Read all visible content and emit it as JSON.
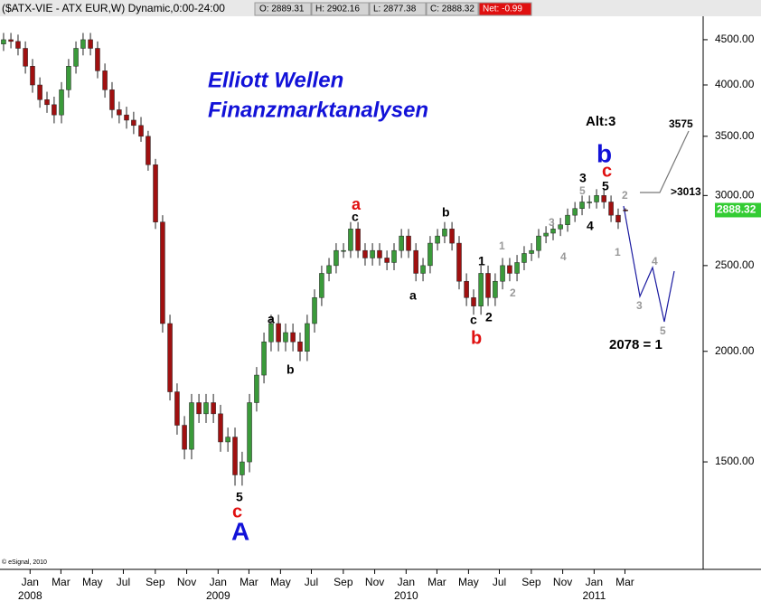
{
  "chart_data": {
    "type": "candlestick",
    "header": {
      "symbol": "($ATX-VIE - ATX EUR,W) Dynamic,0:00-24:00",
      "open": "O: 2889.31",
      "high": "H: 2902.16",
      "low": "L: 2877.38",
      "close": "C: 2888.32",
      "net": "Net: -0.99"
    },
    "copyright": "© eSignal, 2010",
    "log_y": true,
    "ylim": [
      1134,
      4783
    ],
    "yticks": [
      {
        "value": 1500,
        "label": "1500.00"
      },
      {
        "value": 2000,
        "label": "2000.00"
      },
      {
        "value": 2500,
        "label": "2500.00"
      },
      {
        "value": 3000,
        "label": "3000.00"
      },
      {
        "value": 3500,
        "label": "3500.00"
      },
      {
        "value": 4000,
        "label": "4000.00"
      },
      {
        "value": 4500,
        "label": "4500.00"
      }
    ],
    "xlim": [
      2007.84,
      2011.58
    ],
    "xticks": [
      {
        "value": 2008,
        "label": "Jan"
      },
      {
        "value": 2008.164,
        "label": "Mar"
      },
      {
        "value": 2008.332,
        "label": "May"
      },
      {
        "value": 2008.496,
        "label": "Jul"
      },
      {
        "value": 2008.666,
        "label": "Sep"
      },
      {
        "value": 2008.833,
        "label": "Nov"
      },
      {
        "value": 2009,
        "label": "Jan"
      },
      {
        "value": 2009.164,
        "label": "Mar"
      },
      {
        "value": 2009.332,
        "label": "May"
      },
      {
        "value": 2009.496,
        "label": "Jul"
      },
      {
        "value": 2009.666,
        "label": "Sep"
      },
      {
        "value": 2009.833,
        "label": "Nov"
      },
      {
        "value": 2010,
        "label": "Jan"
      },
      {
        "value": 2010.164,
        "label": "Mar"
      },
      {
        "value": 2010.332,
        "label": "May"
      },
      {
        "value": 2010.496,
        "label": "Jul"
      },
      {
        "value": 2010.666,
        "label": "Sep"
      },
      {
        "value": 2010.833,
        "label": "Nov"
      },
      {
        "value": 2011,
        "label": "Jan"
      },
      {
        "value": 2011.164,
        "label": "Mar"
      }
    ],
    "xtick_years": [
      2008,
      2009,
      2010,
      2011
    ],
    "up_color": "#3a9a3a",
    "down_color": "#a01010",
    "last_color": "#33cc33",
    "candles": {
      "x": [
        2007.859,
        2007.898,
        2007.936,
        2007.975,
        2008.013,
        2008.052,
        2008.09,
        2008.128,
        2008.167,
        2008.205,
        2008.244,
        2008.282,
        2008.321,
        2008.359,
        2008.398,
        2008.436,
        2008.474,
        2008.513,
        2008.551,
        2008.59,
        2008.628,
        2008.667,
        2008.705,
        2008.744,
        2008.782,
        2008.821,
        2008.859,
        2008.898,
        2008.936,
        2008.975,
        2009.013,
        2009.052,
        2009.09,
        2009.128,
        2009.167,
        2009.205,
        2009.244,
        2009.282,
        2009.321,
        2009.359,
        2009.398,
        2009.436,
        2009.474,
        2009.513,
        2009.551,
        2009.59,
        2009.628,
        2009.667,
        2009.705,
        2009.744,
        2009.782,
        2009.821,
        2009.859,
        2009.898,
        2009.936,
        2009.975,
        2010.013,
        2010.052,
        2010.09,
        2010.128,
        2010.167,
        2010.205,
        2010.244,
        2010.282,
        2010.321,
        2010.359,
        2010.398,
        2010.436,
        2010.474,
        2010.513,
        2010.551,
        2010.59,
        2010.628,
        2010.667,
        2010.705,
        2010.744,
        2010.782,
        2010.821,
        2010.859,
        2010.898,
        2010.936,
        2010.975,
        2011.013,
        2011.052,
        2011.09,
        2011.128,
        2011.167
      ],
      "open": [
        4450,
        4500,
        4480,
        4400,
        4200,
        4000,
        3850,
        3800,
        3700,
        3950,
        4200,
        4400,
        4500,
        4400,
        4150,
        3950,
        3750,
        3700,
        3650,
        3600,
        3500,
        3250,
        2800,
        2150,
        1800,
        1650,
        1550,
        1750,
        1700,
        1750,
        1700,
        1580,
        1600,
        1450,
        1500,
        1750,
        1880,
        2050,
        2150,
        2050,
        2100,
        2050,
        2000,
        2150,
        2300,
        2450,
        2500,
        2600,
        2600,
        2750,
        2600,
        2550,
        2600,
        2550,
        2520,
        2600,
        2700,
        2600,
        2450,
        2500,
        2650,
        2700,
        2750,
        2650,
        2400,
        2300,
        2250,
        2450,
        2300,
        2400,
        2500,
        2450,
        2520,
        2580,
        2600,
        2700,
        2720,
        2750,
        2780,
        2850,
        2900,
        2950,
        2950,
        3000,
        2950,
        2850,
        2889.31
      ],
      "high": [
        4580,
        4580,
        4560,
        4480,
        4280,
        4080,
        3930,
        3880,
        4030,
        4280,
        4480,
        4580,
        4580,
        4480,
        4230,
        4030,
        3830,
        3780,
        3730,
        3680,
        3550,
        3300,
        2850,
        2200,
        1840,
        1690,
        1790,
        1790,
        1790,
        1790,
        1740,
        1640,
        1640,
        1540,
        1790,
        1920,
        2100,
        2200,
        2200,
        2150,
        2150,
        2100,
        2200,
        2350,
        2500,
        2550,
        2650,
        2650,
        2800,
        2800,
        2650,
        2650,
        2650,
        2600,
        2650,
        2750,
        2750,
        2650,
        2550,
        2700,
        2750,
        2800,
        2800,
        2700,
        2450,
        2350,
        2500,
        2500,
        2450,
        2550,
        2550,
        2570,
        2630,
        2650,
        2750,
        2770,
        2800,
        2830,
        2900,
        2950,
        3000,
        3000,
        3050,
        3050,
        3000,
        2900,
        2902.16
      ],
      "low": [
        4370,
        4400,
        4320,
        4120,
        3920,
        3770,
        3720,
        3620,
        3620,
        3870,
        4120,
        4320,
        4320,
        4070,
        3870,
        3670,
        3620,
        3570,
        3520,
        3450,
        3200,
        2750,
        2100,
        1760,
        1610,
        1510,
        1510,
        1660,
        1660,
        1660,
        1540,
        1540,
        1410,
        1410,
        1460,
        1710,
        1840,
        2000,
        2000,
        2000,
        2000,
        1950,
        1950,
        2100,
        2250,
        2400,
        2450,
        2550,
        2550,
        2550,
        2500,
        2500,
        2500,
        2470,
        2470,
        2550,
        2550,
        2400,
        2400,
        2450,
        2600,
        2650,
        2600,
        2350,
        2250,
        2200,
        2200,
        2250,
        2250,
        2350,
        2400,
        2400,
        2470,
        2530,
        2550,
        2650,
        2670,
        2700,
        2730,
        2800,
        2850,
        2900,
        2900,
        2900,
        2800,
        2750,
        2877.38
      ],
      "close": [
        4500,
        4480,
        4400,
        4200,
        4000,
        3850,
        3800,
        3700,
        3950,
        4200,
        4400,
        4500,
        4400,
        4150,
        3950,
        3750,
        3700,
        3650,
        3600,
        3500,
        3250,
        2800,
        2150,
        1800,
        1650,
        1550,
        1750,
        1700,
        1750,
        1700,
        1580,
        1600,
        1450,
        1500,
        1750,
        1880,
        2050,
        2150,
        2050,
        2100,
        2050,
        2000,
        2150,
        2300,
        2450,
        2500,
        2600,
        2600,
        2750,
        2600,
        2550,
        2600,
        2550,
        2520,
        2600,
        2700,
        2600,
        2450,
        2500,
        2650,
        2700,
        2750,
        2650,
        2400,
        2300,
        2250,
        2450,
        2300,
        2400,
        2500,
        2450,
        2520,
        2580,
        2600,
        2700,
        2720,
        2750,
        2780,
        2850,
        2900,
        2950,
        2950,
        3000,
        2950,
        2850,
        2800,
        2888.32
      ]
    },
    "annotations": [
      "Elliott Wellen",
      "Finanzmarktanalysen",
      "Alt:3",
      "3575",
      ">3013",
      "2078 = 1",
      "b",
      "c",
      "5",
      "3",
      "5",
      "4",
      "2",
      "1",
      "3",
      "4",
      "5",
      "a",
      "c",
      "b",
      "a",
      "1",
      "1",
      "2",
      "2",
      "c",
      "b",
      "3",
      "4",
      "a",
      "b",
      "5",
      "c",
      "A"
    ]
  }
}
